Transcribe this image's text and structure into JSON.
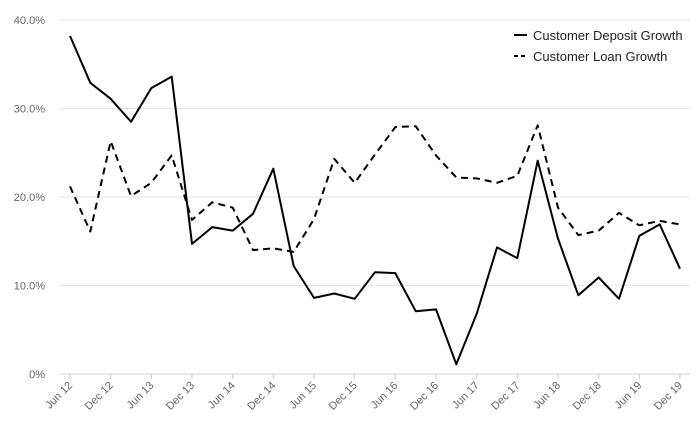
{
  "chart_data": {
    "type": "line",
    "title": "",
    "xlabel": "",
    "ylabel": "",
    "ylim": [
      0,
      40
    ],
    "yticks": [
      0,
      10,
      20,
      30,
      40
    ],
    "ytick_labels": [
      "0%",
      "10.0%",
      "20.0%",
      "30.0%",
      "40.0%"
    ],
    "grid": true,
    "legend_position": "top-right",
    "x": [
      "Jun 12",
      "Sep 12",
      "Dec 12",
      "Mar 13",
      "Jun 13",
      "Sep 13",
      "Dec 13",
      "Mar 14",
      "Jun 14",
      "Sep 14",
      "Dec 14",
      "Mar 15",
      "Jun 15",
      "Sep 15",
      "Dec 15",
      "Mar 16",
      "Jun 16",
      "Sep 16",
      "Dec 16",
      "Mar 17",
      "Jun 17",
      "Sep 17",
      "Dec 17",
      "Mar 18",
      "Jun 18",
      "Sep 18",
      "Dec 18",
      "Mar 19",
      "Jun 19",
      "Sep 19",
      "Dec 19"
    ],
    "xtick_labels": [
      "Jun 12",
      "Dec 12",
      "Jun 13",
      "Dec 13",
      "Jun 14",
      "Dec 14",
      "Jun 15",
      "Dec 15",
      "Jun 16",
      "Dec 16",
      "Jun 17",
      "Dec 17",
      "Jun 18",
      "Dec 18",
      "Jun 19",
      "Dec 19"
    ],
    "series": [
      {
        "name": "Customer Deposit Growth",
        "style": "solid",
        "color": "#000000",
        "values": [
          38.2,
          32.9,
          31.1,
          28.5,
          32.3,
          33.6,
          14.7,
          16.6,
          16.2,
          18.1,
          23.2,
          12.2,
          8.6,
          9.1,
          8.5,
          11.5,
          11.4,
          7.1,
          7.3,
          1.1,
          6.8,
          14.3,
          13.1,
          24.1,
          15.3,
          8.9,
          10.9,
          8.5,
          15.6,
          16.9,
          11.9
        ]
      },
      {
        "name": "Customer Loan Growth",
        "style": "dashed",
        "color": "#000000",
        "values": [
          21.2,
          16.1,
          26.3,
          20.1,
          21.6,
          24.7,
          17.4,
          19.4,
          18.8,
          14.0,
          14.2,
          13.8,
          17.5,
          24.3,
          21.6,
          24.8,
          27.9,
          28.0,
          24.7,
          22.2,
          22.1,
          21.6,
          22.4,
          28.1,
          18.8,
          15.7,
          16.2,
          18.2,
          16.8,
          17.3,
          16.9
        ]
      }
    ]
  }
}
